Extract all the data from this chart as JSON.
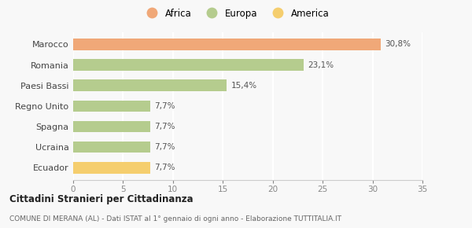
{
  "categories": [
    "Ecuador",
    "Ucraina",
    "Spagna",
    "Regno Unito",
    "Paesi Bassi",
    "Romania",
    "Marocco"
  ],
  "values": [
    7.7,
    7.7,
    7.7,
    7.7,
    15.4,
    23.1,
    30.8
  ],
  "labels": [
    "7,7%",
    "7,7%",
    "7,7%",
    "7,7%",
    "15,4%",
    "23,1%",
    "30,8%"
  ],
  "colors": [
    "#f5ce6e",
    "#b5cc8e",
    "#b5cc8e",
    "#b5cc8e",
    "#b5cc8e",
    "#b5cc8e",
    "#f0a878"
  ],
  "legend": [
    {
      "label": "Africa",
      "color": "#f0a878"
    },
    {
      "label": "Europa",
      "color": "#b5cc8e"
    },
    {
      "label": "America",
      "color": "#f5ce6e"
    }
  ],
  "xlim": [
    0,
    35
  ],
  "xticks": [
    0,
    5,
    10,
    15,
    20,
    25,
    30,
    35
  ],
  "title": "Cittadini Stranieri per Cittadinanza",
  "subtitle": "COMUNE DI MERANA (AL) - Dati ISTAT al 1° gennaio di ogni anno - Elaborazione TUTTITALIA.IT",
  "background_color": "#f8f8f8",
  "grid_color": "#ffffff",
  "bar_height": 0.55
}
